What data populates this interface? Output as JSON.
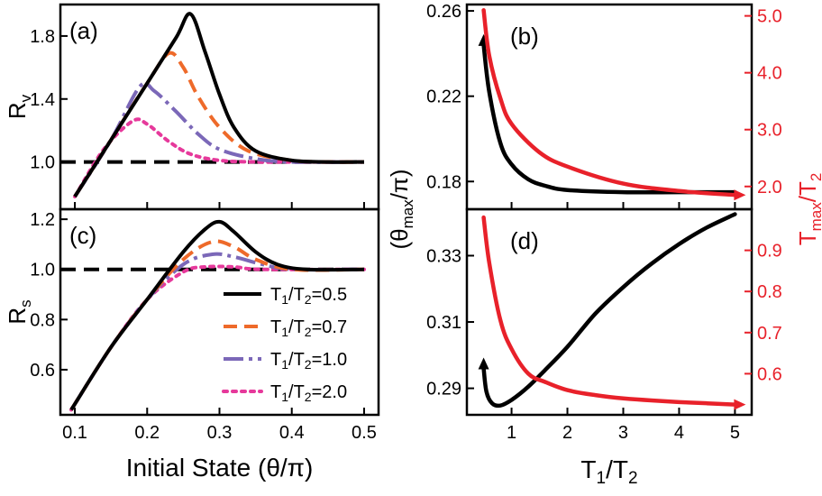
{
  "chart_data": [
    {
      "id": "a",
      "type": "line",
      "panel_label": "(a)",
      "xlabel": "",
      "ylabel": "R",
      "ylabel_sub": "v",
      "xlim": [
        0.08,
        0.52
      ],
      "ylim": [
        0.7,
        2.0
      ],
      "xticks": [
        0.1,
        0.2,
        0.3,
        0.4,
        0.5
      ],
      "yticks": [
        1.0,
        1.4,
        1.8
      ],
      "ytick_labels": [
        "1.0",
        "1.4",
        "1.8"
      ],
      "colors": [
        "#000000",
        "#ee6a2a",
        "#7b68b8",
        "#e6399b"
      ],
      "reference_line": 1.0,
      "series": [
        {
          "name": "T1/T2=0.5",
          "x": [
            0.1,
            0.15,
            0.2,
            0.24,
            0.26,
            0.28,
            0.3,
            0.32,
            0.35,
            0.4,
            0.45,
            0.5
          ],
          "y": [
            0.78,
            1.14,
            1.5,
            1.79,
            1.94,
            1.7,
            1.43,
            1.22,
            1.07,
            1.01,
            1.0,
            1.0
          ]
        },
        {
          "name": "T1/T2=0.7",
          "x": [
            0.1,
            0.15,
            0.2,
            0.23,
            0.25,
            0.27,
            0.3,
            0.34,
            0.4,
            0.45,
            0.5
          ],
          "y": [
            0.78,
            1.14,
            1.5,
            1.69,
            1.6,
            1.42,
            1.22,
            1.07,
            1.01,
            1.0,
            1.0
          ]
        },
        {
          "name": "T1/T2=1.0",
          "x": [
            0.1,
            0.15,
            0.19,
            0.21,
            0.24,
            0.27,
            0.3,
            0.35,
            0.4,
            0.5
          ],
          "y": [
            0.78,
            1.14,
            1.48,
            1.45,
            1.32,
            1.18,
            1.08,
            1.02,
            1.0,
            1.0
          ]
        },
        {
          "name": "T1/T2=2.0",
          "x": [
            0.1,
            0.14,
            0.18,
            0.2,
            0.23,
            0.26,
            0.3,
            0.35,
            0.4,
            0.5
          ],
          "y": [
            0.78,
            1.08,
            1.26,
            1.24,
            1.13,
            1.05,
            1.01,
            1.0,
            1.0,
            1.0
          ]
        }
      ]
    },
    {
      "id": "c",
      "type": "line",
      "panel_label": "(c)",
      "xlabel": "Initial State (θ/π)",
      "ylabel": "R",
      "ylabel_sub": "s",
      "xlim": [
        0.08,
        0.52
      ],
      "ylim": [
        0.42,
        1.24
      ],
      "xticks": [
        0.1,
        0.2,
        0.3,
        0.4,
        0.5
      ],
      "xtick_labels": [
        "0.1",
        "0.2",
        "0.3",
        "0.4",
        "0.5"
      ],
      "yticks": [
        0.6,
        0.8,
        1.0,
        1.2
      ],
      "ytick_labels": [
        "0.6",
        "0.8",
        "1.0",
        "1.2"
      ],
      "colors": [
        "#000000",
        "#ee6a2a",
        "#7b68b8",
        "#e6399b"
      ],
      "reference_line": 1.0,
      "legend": {
        "placement": "bottom-right",
        "entries": [
          {
            "pre": "T",
            "s1": "1",
            "mid": "/T",
            "s2": "2",
            "post": "=0.5"
          },
          {
            "pre": "T",
            "s1": "1",
            "mid": "/T",
            "s2": "2",
            "post": "=0.7"
          },
          {
            "pre": "T",
            "s1": "1",
            "mid": "/T",
            "s2": "2",
            "post": "=1.0"
          },
          {
            "pre": "T",
            "s1": "1",
            "mid": "/T",
            "s2": "2",
            "post": "=2.0"
          }
        ]
      },
      "series": [
        {
          "name": "T1/T2=0.5",
          "x": [
            0.095,
            0.15,
            0.2,
            0.25,
            0.28,
            0.3,
            0.32,
            0.35,
            0.38,
            0.42,
            0.5
          ],
          "y": [
            0.44,
            0.69,
            0.88,
            1.07,
            1.16,
            1.19,
            1.15,
            1.07,
            1.02,
            1.0,
            1.0
          ]
        },
        {
          "name": "T1/T2=0.7",
          "x": [
            0.095,
            0.15,
            0.2,
            0.25,
            0.29,
            0.32,
            0.35,
            0.4,
            0.5
          ],
          "y": [
            0.44,
            0.69,
            0.88,
            1.04,
            1.11,
            1.09,
            1.04,
            1.0,
            1.0
          ]
        },
        {
          "name": "T1/T2=1.0",
          "x": [
            0.095,
            0.15,
            0.2,
            0.25,
            0.29,
            0.32,
            0.36,
            0.4,
            0.5
          ],
          "y": [
            0.44,
            0.69,
            0.88,
            1.02,
            1.06,
            1.05,
            1.02,
            1.0,
            1.0
          ]
        },
        {
          "name": "T1/T2=2.0",
          "x": [
            0.095,
            0.15,
            0.2,
            0.25,
            0.28,
            0.32,
            0.36,
            0.5
          ],
          "y": [
            0.44,
            0.69,
            0.88,
            0.99,
            1.01,
            1.01,
            1.0,
            1.0
          ]
        }
      ]
    },
    {
      "id": "b",
      "type": "line",
      "panel_label": "(b)",
      "xlabel": "",
      "ylabel_left": "",
      "ylabel_right": "T",
      "ylabel_right_sub": "max",
      "ylabel_right_post": "/T",
      "ylabel_right_sub2": "2",
      "xlim": [
        0.2,
        5.3
      ],
      "ylim_left": [
        0.167,
        0.263
      ],
      "ylim_right": [
        1.6,
        5.2
      ],
      "yticks_left": [
        0.18,
        0.22,
        0.26
      ],
      "ytick_labels_left": [
        "0.18",
        "0.22",
        "0.26"
      ],
      "yticks_right": [
        2.0,
        3.0,
        4.0,
        5.0
      ],
      "ytick_labels_right": [
        "2.0",
        "3.0",
        "4.0",
        "5.0"
      ],
      "series": [
        {
          "name": "θmax/π",
          "axis": "left",
          "color": "#000000",
          "x": [
            0.5,
            0.6,
            0.8,
            1.0,
            1.3,
            1.6,
            2.0,
            3.0,
            4.0,
            5.0
          ],
          "y": [
            0.244,
            0.222,
            0.198,
            0.188,
            0.181,
            0.178,
            0.176,
            0.175,
            0.175,
            0.175
          ]
        },
        {
          "name": "Tmax/T2",
          "axis": "right",
          "color": "#e8212a",
          "x": [
            0.5,
            0.6,
            0.8,
            1.0,
            1.5,
            2.0,
            3.0,
            4.0,
            5.0
          ],
          "y": [
            5.1,
            4.3,
            3.55,
            3.1,
            2.6,
            2.35,
            2.05,
            1.92,
            1.85
          ]
        }
      ]
    },
    {
      "id": "d",
      "type": "line",
      "panel_label": "(d)",
      "xlabel": "T",
      "xlabel_sub1": "1",
      "xlabel_mid": "/T",
      "xlabel_sub2": "2",
      "ylabel_left": "(θ",
      "ylabel_left_sub": "max",
      "ylabel_left_post": "/π)",
      "ylabel_right": "",
      "xlim": [
        0.2,
        5.3
      ],
      "xticks": [
        1,
        2,
        3,
        4,
        5
      ],
      "xtick_labels": [
        "1",
        "2",
        "3",
        "4",
        "5"
      ],
      "ylim_left": [
        0.282,
        0.344
      ],
      "ylim_right": [
        0.5,
        1.0
      ],
      "yticks_left": [
        0.29,
        0.31,
        0.33
      ],
      "ytick_labels_left": [
        "0.29",
        "0.31",
        "0.33"
      ],
      "yticks_right": [
        0.6,
        0.7,
        0.8,
        0.9
      ],
      "ytick_labels_right": [
        "0.6",
        "0.7",
        "0.8",
        "0.9"
      ],
      "series": [
        {
          "name": "θmax/π",
          "axis": "left",
          "color": "#000000",
          "x": [
            0.5,
            0.55,
            0.65,
            0.8,
            1.0,
            1.3,
            1.6,
            2.0,
            2.5,
            3.0,
            3.5,
            4.0,
            4.5,
            5.0
          ],
          "y": [
            0.296,
            0.289,
            0.2855,
            0.2848,
            0.2865,
            0.2905,
            0.2955,
            0.3025,
            0.3125,
            0.3205,
            0.3275,
            0.3335,
            0.3385,
            0.3425
          ]
        },
        {
          "name": "Tmax/T2",
          "axis": "right",
          "color": "#e8212a",
          "x": [
            0.5,
            0.6,
            0.8,
            1.0,
            1.3,
            1.6,
            2.0,
            2.5,
            3.0,
            3.5,
            4.0,
            4.5,
            5.0
          ],
          "y": [
            0.98,
            0.87,
            0.73,
            0.66,
            0.6,
            0.58,
            0.56,
            0.548,
            0.54,
            0.535,
            0.531,
            0.528,
            0.525
          ]
        }
      ]
    }
  ]
}
